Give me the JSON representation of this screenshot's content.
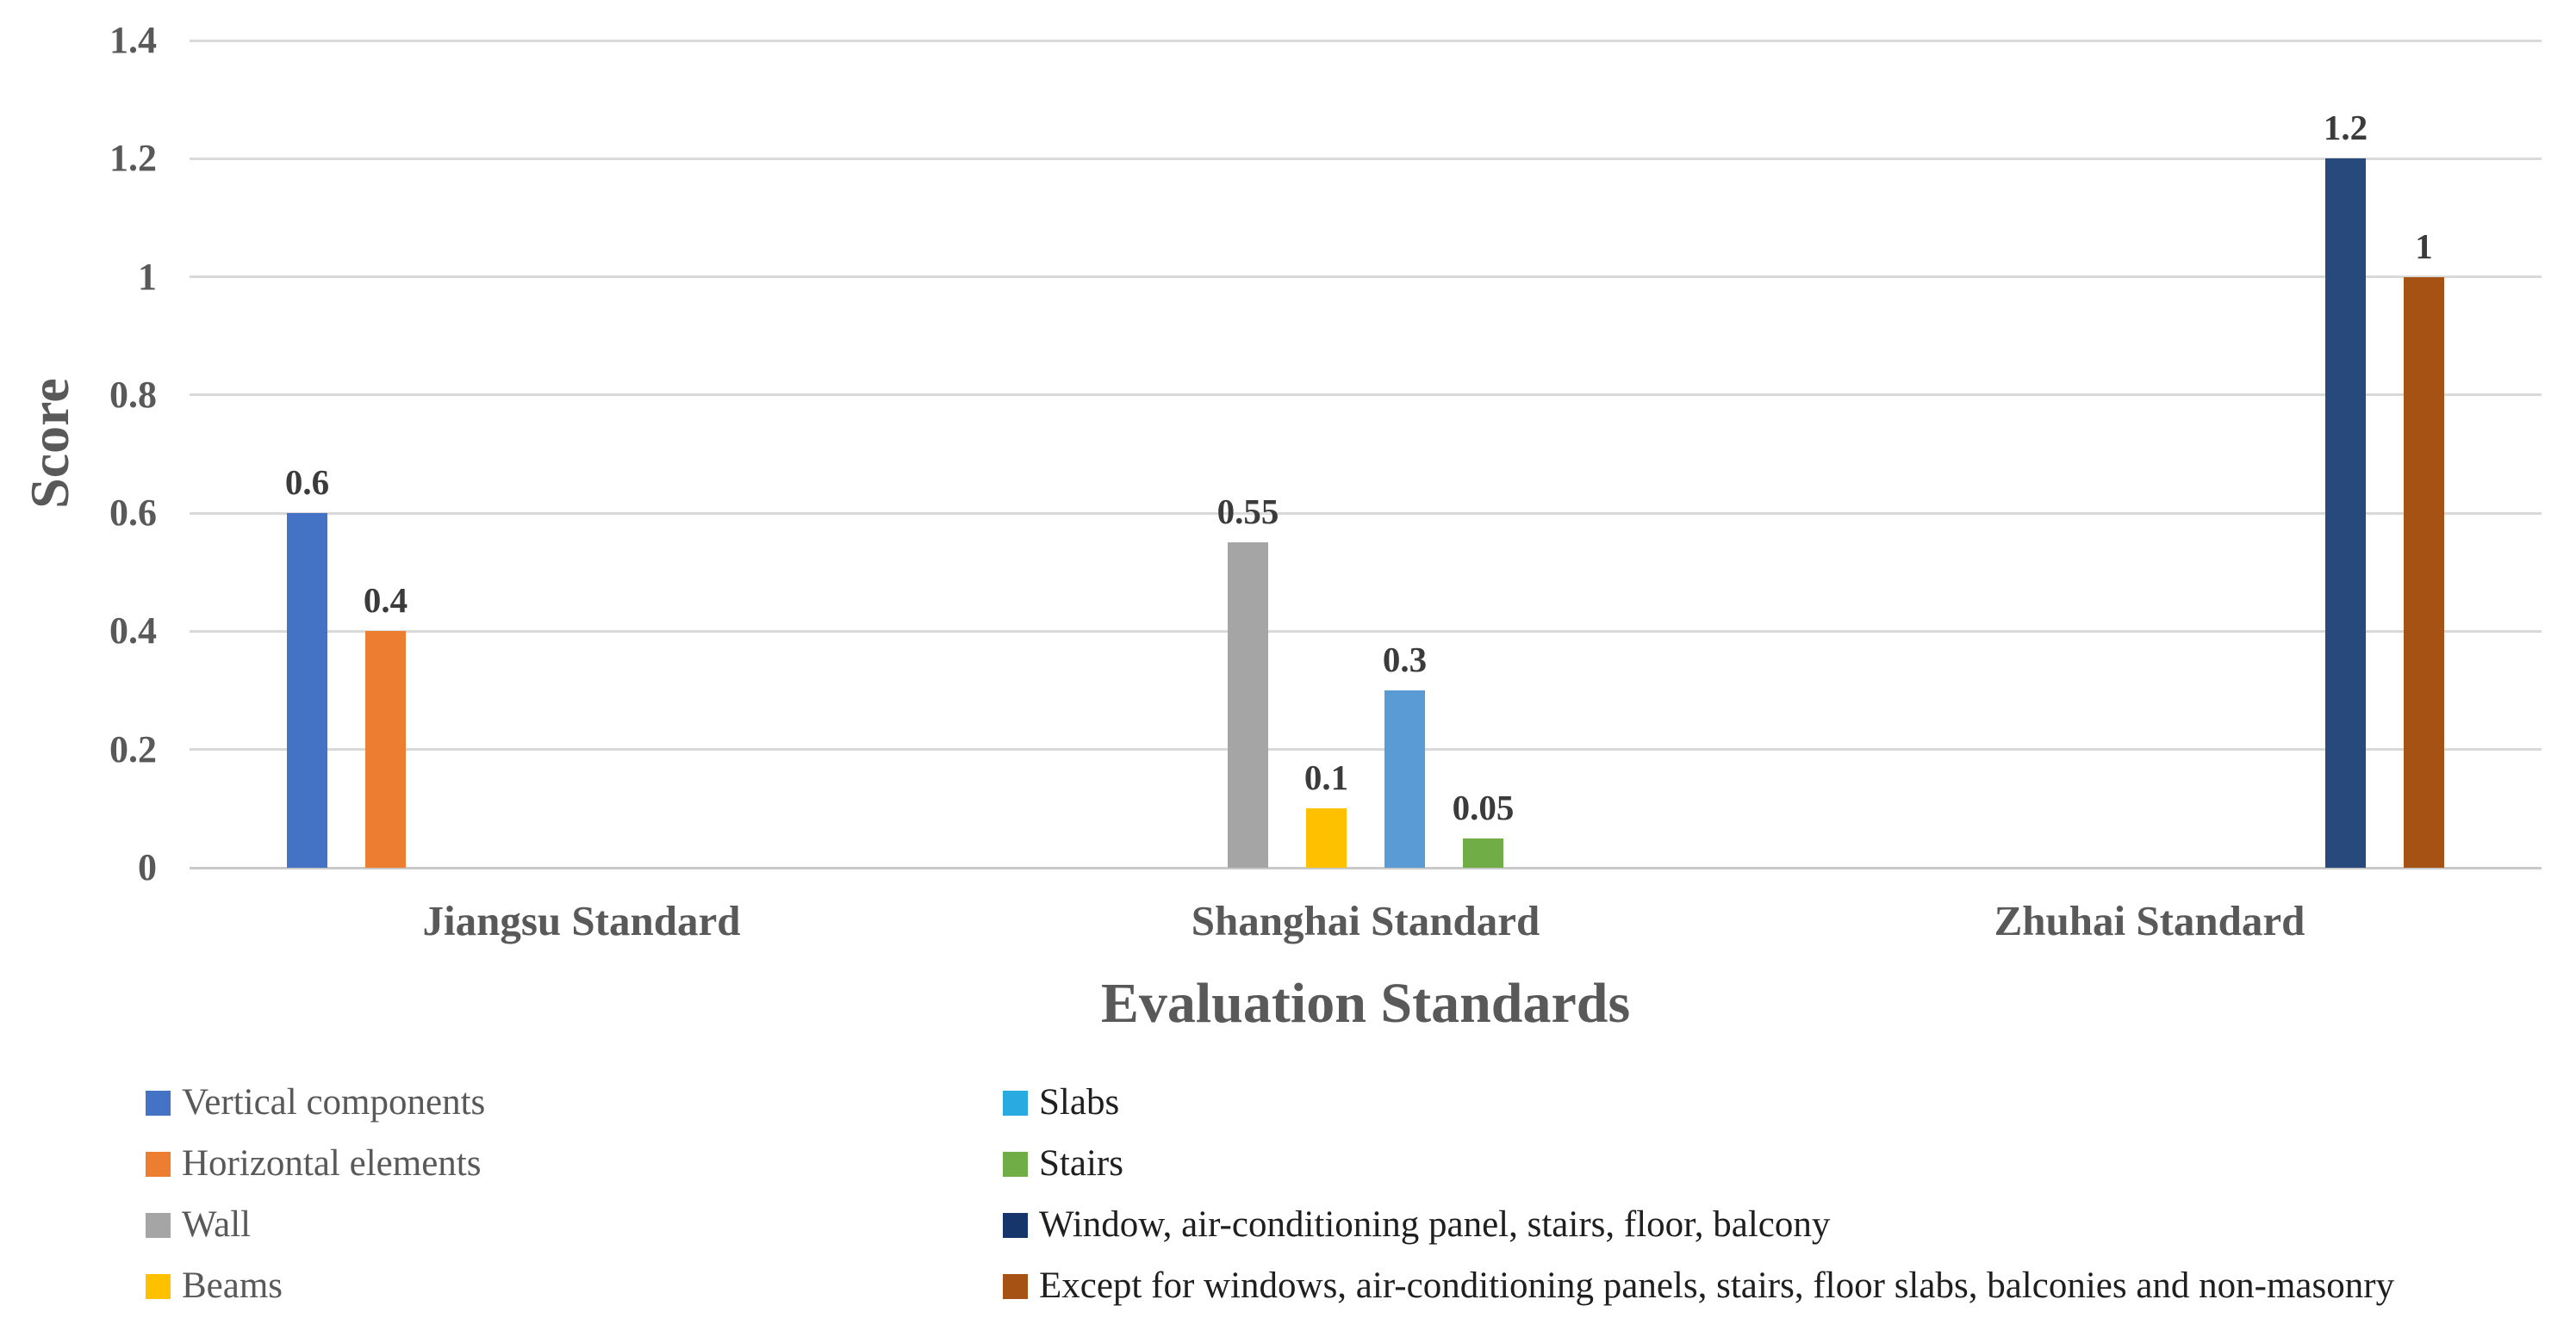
{
  "chart_data": {
    "type": "bar",
    "title": "",
    "xlabel": "Evaluation Standards",
    "ylabel": "Score",
    "ylim": [
      0,
      1.4
    ],
    "ytick_interval": 0.2,
    "yticks": [
      "0",
      "0.2",
      "0.4",
      "0.6",
      "0.8",
      "1",
      "1.2",
      "1.4"
    ],
    "grid": true,
    "legend_position": "bottom-two-columns",
    "axis_text_color": "#595959",
    "data_label_color": "#3b3b3b",
    "gridline_color": "#d9d9d9",
    "legend_text_colors": [
      "#595959",
      "#1f1f1f"
    ],
    "categories": [
      "Jiangsu Standard",
      "Shanghai Standard",
      "Zhuhai Standard"
    ],
    "series": [
      {
        "name": "Vertical components",
        "color": "#4472C4",
        "category": "Jiangsu Standard",
        "value": 0.6,
        "label": "0.6"
      },
      {
        "name": "Horizontal elements",
        "color": "#ED7D31",
        "category": "Jiangsu Standard",
        "value": 0.4,
        "label": "0.4"
      },
      {
        "name": "Wall",
        "color": "#A5A5A5",
        "category": "Shanghai Standard",
        "value": 0.55,
        "label": "0.55"
      },
      {
        "name": "Beams",
        "color": "#FFC000",
        "category": "Shanghai Standard",
        "value": 0.1,
        "label": "0.1"
      },
      {
        "name": "Slabs",
        "color": "#5B9BD5",
        "legend_color": "#29ABE2",
        "category": "Shanghai Standard",
        "value": 0.3,
        "label": "0.3"
      },
      {
        "name": "Stairs",
        "color": "#70AD47",
        "category": "Shanghai Standard",
        "value": 0.05,
        "label": "0.05"
      },
      {
        "name": "Window, air-conditioning panel, stairs, floor, balcony",
        "color": "#28497C",
        "legend_color": "#16356B",
        "category": "Zhuhai Standard",
        "value": 1.2,
        "label": "1.2"
      },
      {
        "name": "Except for windows, air-conditioning panels, stairs, floor slabs, balconies and non-masonry",
        "color": "#A65214",
        "category": "Zhuhai Standard",
        "value": 1,
        "label": "1"
      }
    ],
    "legend_columns": [
      [
        0,
        1,
        2,
        3
      ],
      [
        4,
        5,
        6,
        7
      ]
    ]
  }
}
